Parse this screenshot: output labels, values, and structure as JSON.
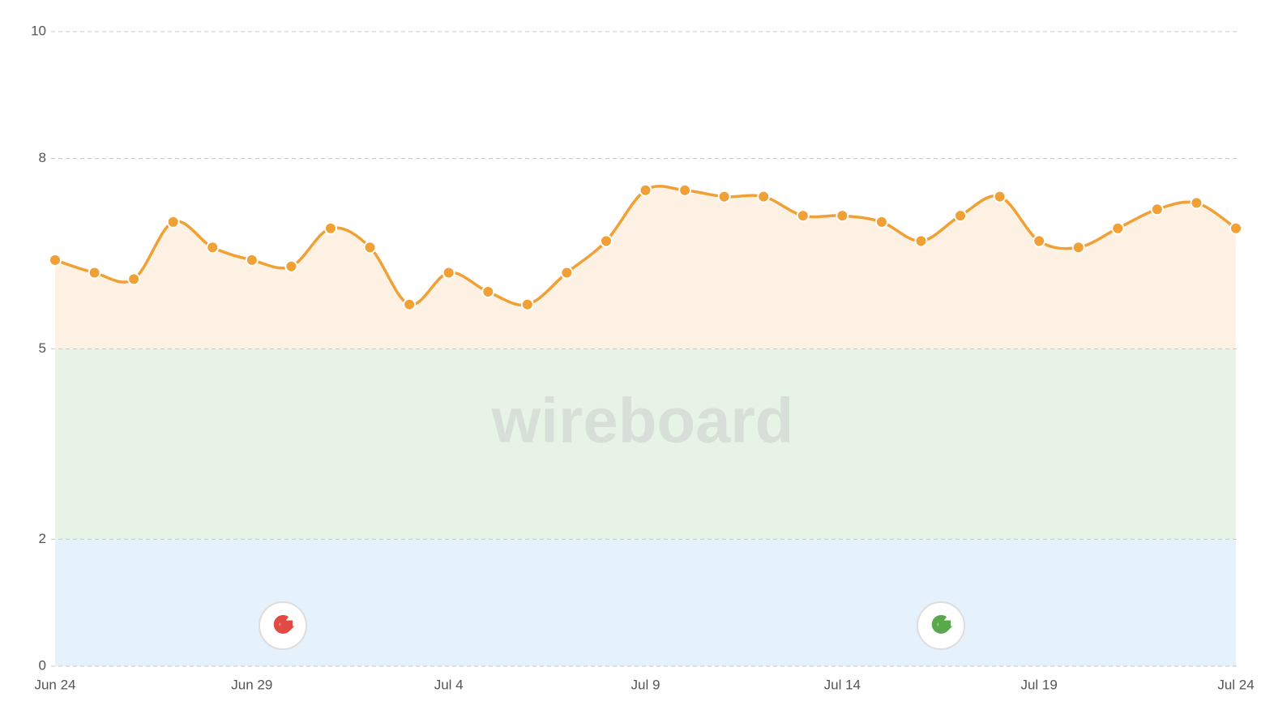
{
  "chart_data": {
    "type": "line",
    "watermark": "wireboard",
    "categories": [
      "Jun 24",
      null,
      null,
      null,
      null,
      "Jun 29",
      null,
      null,
      null,
      null,
      "Jul 4",
      null,
      null,
      null,
      null,
      "Jul 9",
      null,
      null,
      null,
      null,
      "Jul 14",
      null,
      null,
      null,
      null,
      "Jul 19",
      null,
      null,
      null,
      null,
      "Jul 24"
    ],
    "series": [
      {
        "color": "#f0a035",
        "values": [
          6.4,
          6.2,
          6.1,
          7.0,
          6.6,
          6.4,
          6.3,
          6.9,
          6.6,
          5.7,
          6.2,
          5.9,
          5.7,
          6.2,
          6.7,
          7.5,
          7.5,
          7.4,
          7.4,
          7.1,
          7.1,
          7.0,
          6.7,
          7.1,
          7.4,
          6.7,
          6.6,
          6.9,
          7.2,
          7.3,
          6.9
        ]
      }
    ],
    "area_color": "#fcf1e2",
    "bands": [
      {
        "from": 0,
        "to": 2,
        "color": "#e5f1fb"
      },
      {
        "from": 2,
        "to": 5,
        "color": "#e7f3e6"
      }
    ],
    "ylim": [
      0,
      10
    ],
    "yticks": [
      0,
      2,
      5,
      8,
      10
    ],
    "grid": true
  }
}
